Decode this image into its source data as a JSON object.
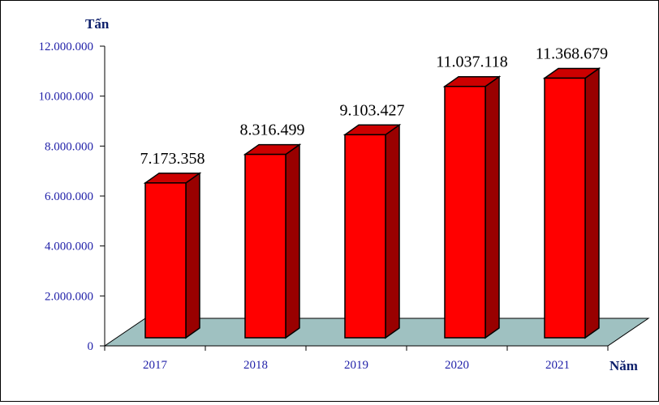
{
  "chart_data": {
    "type": "bar",
    "categories": [
      "2017",
      "2018",
      "2019",
      "2020",
      "2021"
    ],
    "values": [
      7173358,
      8316499,
      9103427,
      11037118,
      11368679
    ],
    "data_labels": [
      "7.173.358",
      "8.316.499",
      "9.103.427",
      "11.037.118",
      "11.368.679"
    ],
    "ylabel": "Tấn",
    "xlabel": "Năm",
    "ylim": [
      0,
      12000000
    ],
    "y_ticks": [
      0,
      2000000,
      4000000,
      6000000,
      8000000,
      10000000,
      12000000
    ],
    "y_tick_labels": [
      "0",
      "2.000.000",
      "4.000.000",
      "6.000.000",
      "8.000.000",
      "10.000.000",
      "12.000.000"
    ],
    "grid": false,
    "legend": "none",
    "style": "3d-column",
    "colors": {
      "bar_front": "#ff0000",
      "bar_top": "#cc0000",
      "bar_side": "#990000",
      "floor": "#9fc1c1",
      "tick_text": "#1f1fa8",
      "axis_title": "#0d1f6b"
    }
  }
}
